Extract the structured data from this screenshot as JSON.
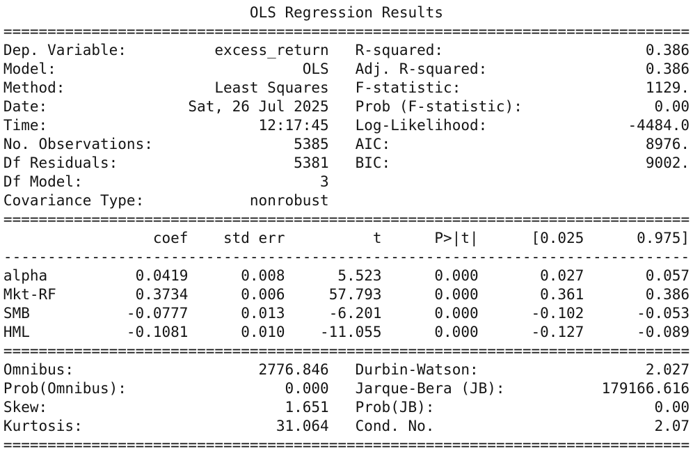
{
  "title": "OLS Regression Results",
  "separators": {
    "double": "==============================================================================",
    "single": "------------------------------------------------------------------------------"
  },
  "colors": {
    "text": "#141414",
    "background": "#ffffff"
  },
  "info": {
    "left": [
      {
        "label": "Dep. Variable:",
        "value": "excess_return"
      },
      {
        "label": "Model:",
        "value": "OLS"
      },
      {
        "label": "Method:",
        "value": "Least Squares"
      },
      {
        "label": "Date:",
        "value": "Sat, 26 Jul 2025"
      },
      {
        "label": "Time:",
        "value": "12:17:45"
      },
      {
        "label": "No. Observations:",
        "value": "5385"
      },
      {
        "label": "Df Residuals:",
        "value": "5381"
      },
      {
        "label": "Df Model:",
        "value": "3"
      },
      {
        "label": "Covariance Type:",
        "value": "nonrobust"
      }
    ],
    "right": [
      {
        "label": "R-squared:",
        "value": "0.386"
      },
      {
        "label": "Adj. R-squared:",
        "value": "0.386"
      },
      {
        "label": "F-statistic:",
        "value": "1129."
      },
      {
        "label": "Prob (F-statistic):",
        "value": "0.00"
      },
      {
        "label": "Log-Likelihood:",
        "value": "-4484.0"
      },
      {
        "label": "AIC:",
        "value": "8976."
      },
      {
        "label": "BIC:",
        "value": "9002."
      }
    ]
  },
  "coef_table": {
    "headers": {
      "coef": "coef",
      "std_err": "std err",
      "t": "t",
      "p": "P>|t|",
      "ci_low": "[0.025",
      "ci_high": "0.975]"
    },
    "rows": [
      {
        "name": "alpha",
        "coef": "0.0419",
        "std_err": "0.008",
        "t": "5.523",
        "p": "0.000",
        "ci_low": "0.027",
        "ci_high": "0.057"
      },
      {
        "name": "Mkt-RF",
        "coef": "0.3734",
        "std_err": "0.006",
        "t": "57.793",
        "p": "0.000",
        "ci_low": "0.361",
        "ci_high": "0.386"
      },
      {
        "name": "SMB",
        "coef": "-0.0777",
        "std_err": "0.013",
        "t": "-6.201",
        "p": "0.000",
        "ci_low": "-0.102",
        "ci_high": "-0.053"
      },
      {
        "name": "HML",
        "coef": "-0.1081",
        "std_err": "0.010",
        "t": "-11.055",
        "p": "0.000",
        "ci_low": "-0.127",
        "ci_high": "-0.089"
      }
    ]
  },
  "diagnostics": {
    "left": [
      {
        "label": "Omnibus:",
        "value": "2776.846"
      },
      {
        "label": "Prob(Omnibus):",
        "value": "0.000"
      },
      {
        "label": "Skew:",
        "value": "1.651"
      },
      {
        "label": "Kurtosis:",
        "value": "31.064"
      }
    ],
    "right": [
      {
        "label": "Durbin-Watson:",
        "value": "2.027"
      },
      {
        "label": "Jarque-Bera (JB):",
        "value": "179166.616"
      },
      {
        "label": "Prob(JB):",
        "value": "0.00"
      },
      {
        "label": "Cond. No.",
        "value": "2.07"
      }
    ]
  }
}
